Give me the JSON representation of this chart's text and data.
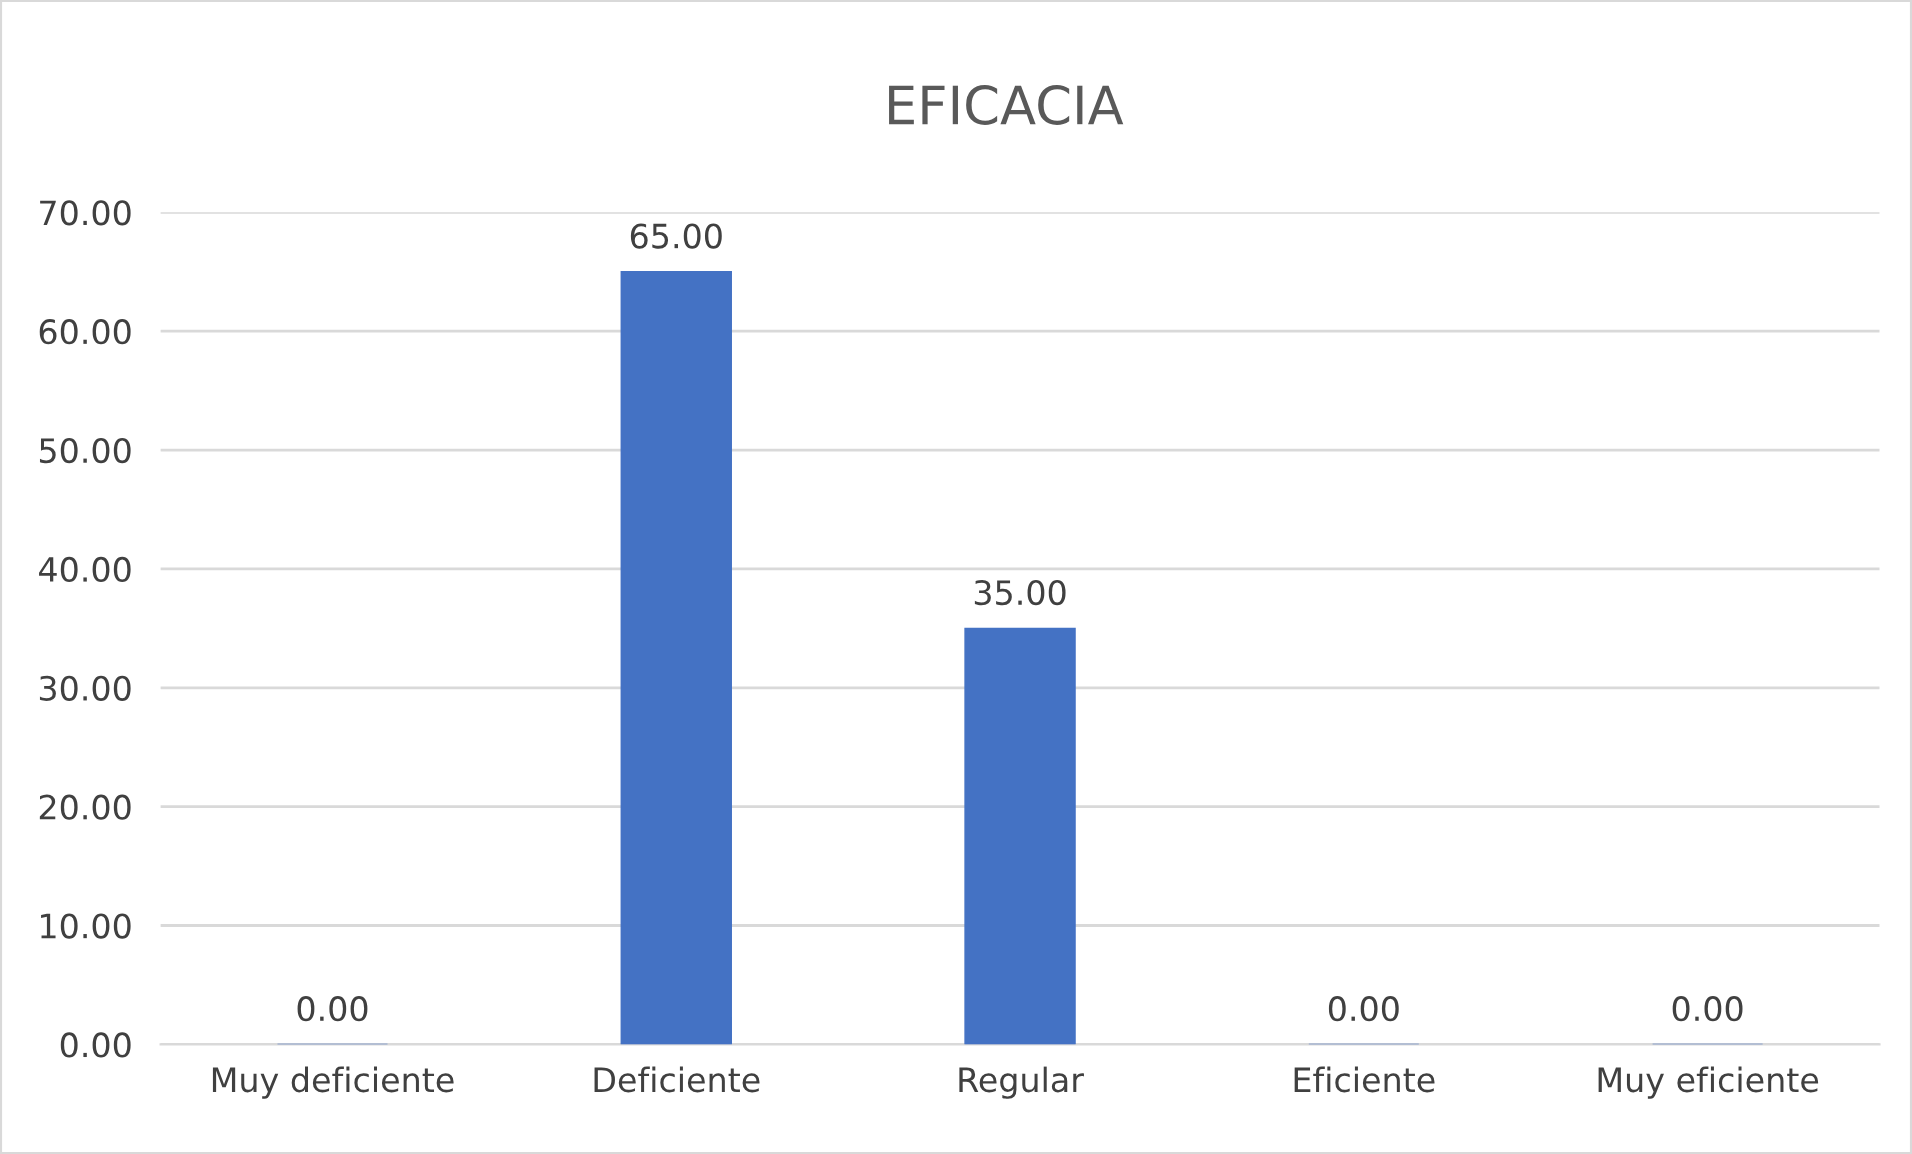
{
  "chart_data": {
    "type": "bar",
    "title": "EFICACIA",
    "categories": [
      "Muy deficiente",
      "Deficiente",
      "Regular",
      "Eficiente",
      "Muy eficiente"
    ],
    "values": [
      0,
      65,
      35,
      0,
      0
    ],
    "value_labels": [
      "0.00",
      "65.00",
      "35.00",
      "0.00",
      "0.00"
    ],
    "color": "#4472c4",
    "ylim": [
      0,
      70
    ],
    "yticks": [
      {
        "value": 0,
        "label": "0.00"
      },
      {
        "value": 10,
        "label": "10.00"
      },
      {
        "value": 20,
        "label": "20.00"
      },
      {
        "value": 30,
        "label": "30.00"
      },
      {
        "value": 40,
        "label": "40.00"
      },
      {
        "value": 50,
        "label": "50.00"
      },
      {
        "value": 60,
        "label": "60.00"
      },
      {
        "value": 70,
        "label": "70.00"
      }
    ],
    "grid": "y",
    "legend": false
  }
}
